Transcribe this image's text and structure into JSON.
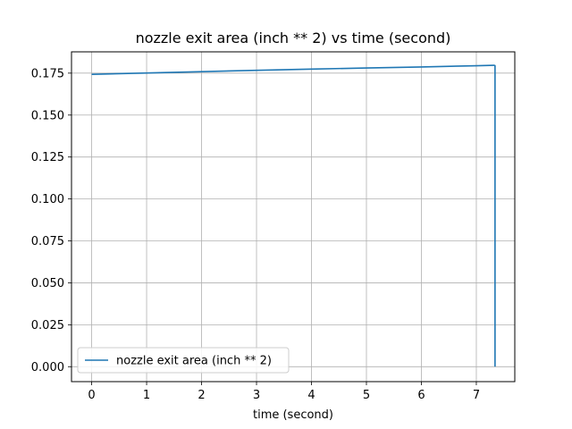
{
  "chart_data": {
    "type": "line",
    "title": "nozzle exit area (inch ** 2) vs time (second)",
    "xlabel": "time (second)",
    "ylabel": "",
    "xlim": [
      -0.367,
      7.7
    ],
    "ylim": [
      -0.0089,
      0.1877
    ],
    "x_ticks": [
      0,
      1,
      2,
      3,
      4,
      5,
      6,
      7
    ],
    "x_tick_labels": [
      "0",
      "1",
      "2",
      "3",
      "4",
      "5",
      "6",
      "7"
    ],
    "y_ticks": [
      0.0,
      0.025,
      0.05,
      0.075,
      0.1,
      0.125,
      0.15,
      0.175
    ],
    "y_tick_labels": [
      "0.000",
      "0.025",
      "0.050",
      "0.075",
      "0.100",
      "0.125",
      "0.150",
      "0.175"
    ],
    "grid": true,
    "legend_position": "lower-left",
    "series": [
      {
        "name": "nozzle exit area (inch ** 2)",
        "color": "#1f77b4",
        "x": [
          0.0,
          1.0,
          2.0,
          3.0,
          4.0,
          5.0,
          6.0,
          7.0,
          7.32,
          7.34,
          7.34
        ],
        "y": [
          0.1743,
          0.1751,
          0.1759,
          0.1767,
          0.1774,
          0.1781,
          0.1787,
          0.1794,
          0.1797,
          0.1795,
          0.0
        ]
      }
    ]
  }
}
